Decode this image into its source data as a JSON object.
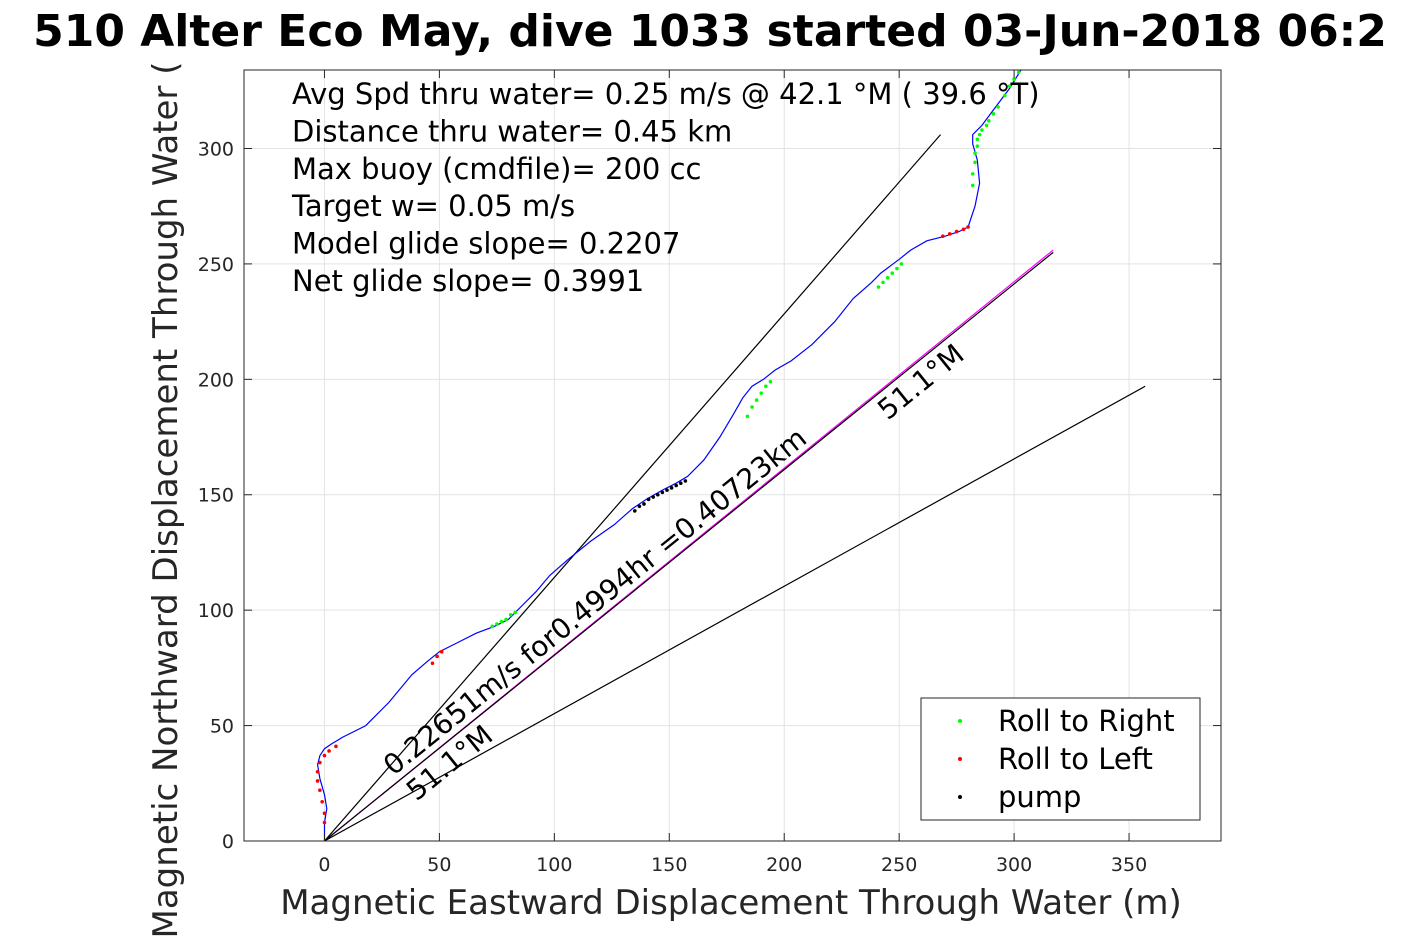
{
  "chart_data": {
    "type": "line",
    "title": "510 Alter Eco May, dive 1033 started 03-Jun-2018 06:2",
    "xlabel": "Magnetic Eastward Displacement Through Water (m)",
    "ylabel": "Magnetic Northward Displacement Through Water (",
    "xlim": [
      -35,
      390
    ],
    "ylim": [
      0,
      334
    ],
    "xticks": [
      0,
      50,
      100,
      150,
      200,
      250,
      300,
      350
    ],
    "yticks": [
      0,
      50,
      100,
      150,
      200,
      250,
      300
    ],
    "grid": true,
    "info_lines": [
      "Avg Spd thru water=  0.25 m/s @  42.1 °M ( 39.6 °T)",
      "Distance thru water=  0.45 km",
      "Max buoy (cmdfile)= 200 cc",
      "Target w= 0.05 m/s",
      "Model glide slope= 0.2207",
      "Net glide slope= 0.3991"
    ],
    "track": {
      "color": "#0000ff",
      "x": [
        0,
        0,
        1,
        0,
        -2,
        -3,
        -2,
        0,
        3,
        8,
        18,
        28,
        38,
        45,
        50,
        58,
        66,
        74,
        80,
        86,
        92,
        98,
        106,
        116,
        126,
        134,
        140,
        147,
        153,
        158,
        165,
        172,
        178,
        182,
        186,
        191,
        196,
        203,
        212,
        222,
        230,
        238,
        242,
        246,
        250,
        255,
        262,
        270,
        276,
        280,
        283,
        285,
        284,
        282,
        282,
        286,
        292,
        298,
        303
      ],
      "y": [
        0,
        8,
        14,
        20,
        27,
        33,
        37,
        40,
        42,
        45,
        50,
        60,
        72,
        78,
        82,
        86,
        90,
        93,
        96,
        102,
        108,
        115,
        122,
        130,
        137,
        144,
        148,
        152,
        155,
        158,
        165,
        175,
        185,
        192,
        197,
        200,
        204,
        208,
        215,
        225,
        235,
        242,
        246,
        249,
        252,
        256,
        260,
        262,
        264,
        266,
        275,
        285,
        295,
        302,
        306,
        310,
        318,
        326,
        334
      ]
    },
    "lines": [
      {
        "name": "",
        "color": "#000000",
        "x": [
          0,
          268
        ],
        "y": [
          0,
          306
        ]
      },
      {
        "name": "",
        "color": "#ff00ff",
        "x": [
          0,
          317
        ],
        "y": [
          0,
          256
        ]
      },
      {
        "name": "",
        "color": "#000000",
        "x": [
          0,
          317
        ],
        "y": [
          0,
          255
        ]
      },
      {
        "name": "",
        "color": "#000000",
        "x": [
          0,
          357
        ],
        "y": [
          0,
          197
        ]
      }
    ],
    "markers": {
      "roll_right": {
        "color": "#00ff00",
        "x": [
          73,
          75,
          77,
          79,
          81,
          83,
          184,
          186,
          188,
          190,
          192,
          194,
          241,
          243,
          245,
          247,
          249,
          251,
          282,
          282,
          283,
          283,
          284,
          284,
          285,
          286,
          288,
          289,
          291,
          293,
          296,
          298,
          300,
          302
        ],
        "y": [
          93,
          94,
          95,
          96,
          98,
          99,
          184,
          188,
          191,
          194,
          197,
          199,
          240,
          242,
          244,
          246,
          248,
          250,
          284,
          289,
          294,
          298,
          301,
          304,
          306,
          308,
          310,
          312,
          315,
          318,
          323,
          327,
          330,
          333
        ]
      },
      "roll_left": {
        "color": "#ff0000",
        "x": [
          0,
          0,
          -1,
          -2,
          -3,
          -3,
          -2,
          0,
          2,
          5,
          47,
          49,
          51,
          269,
          272,
          275,
          278,
          280
        ],
        "y": [
          8,
          12,
          17,
          22,
          26,
          30,
          34,
          37,
          39,
          41,
          77,
          80,
          82,
          262,
          263,
          264,
          265,
          266
        ]
      },
      "pump": {
        "color": "#000000",
        "x": [
          135,
          137,
          139,
          141,
          143,
          145,
          147,
          149,
          151,
          153,
          155,
          157
        ],
        "y": [
          143,
          145,
          146,
          148,
          149,
          150,
          151,
          152,
          153,
          154,
          155,
          156
        ]
      }
    },
    "annotations": [
      {
        "text": "0.22651m/s for0.4994hr =0.40723km",
        "x": 30,
        "y": 28,
        "angle": 38.9
      },
      {
        "text": "51.1°M",
        "x": 40,
        "y": 17,
        "angle": 38.9
      },
      {
        "text": "51.1°M",
        "x": 245,
        "y": 182,
        "angle": 38.9
      }
    ],
    "legend": {
      "location": "bottom-right",
      "entries": [
        {
          "label": "Roll to Right",
          "color": "#00ff00"
        },
        {
          "label": "Roll to Left",
          "color": "#ff0000"
        },
        {
          "label": "pump",
          "color": "#000000"
        }
      ]
    }
  }
}
